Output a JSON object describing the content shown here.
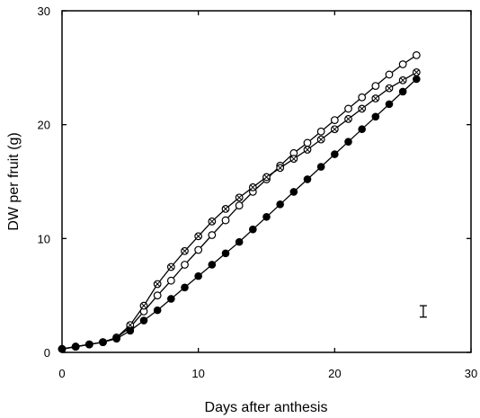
{
  "chart_data": {
    "type": "line",
    "xlabel": "Days after anthesis",
    "ylabel": "DW per fruit (g)",
    "xlim": [
      0,
      30
    ],
    "ylim": [
      0,
      30
    ],
    "xticks": [
      "0",
      "10",
      "20",
      "30"
    ],
    "yticks": [
      "0",
      "10",
      "20",
      "30"
    ],
    "grid": false,
    "legend": "none",
    "series": [
      {
        "marker": "open-circle",
        "x": [
          0,
          1,
          2,
          3,
          4,
          5,
          6,
          7,
          8,
          9,
          10,
          11,
          12,
          13,
          14,
          15,
          16,
          17,
          18,
          19,
          20,
          21,
          22,
          23,
          24,
          25,
          26
        ],
        "y": [
          0.3,
          0.5,
          0.7,
          0.9,
          1.3,
          2.2,
          3.6,
          5.0,
          6.3,
          7.7,
          9.0,
          10.3,
          11.6,
          12.9,
          14.1,
          15.2,
          16.4,
          17.5,
          18.4,
          19.4,
          20.4,
          21.4,
          22.4,
          23.4,
          24.4,
          25.3,
          26.1
        ]
      },
      {
        "marker": "crossed-circle",
        "x": [
          0,
          1,
          2,
          3,
          4,
          5,
          6,
          7,
          8,
          9,
          10,
          11,
          12,
          13,
          14,
          15,
          16,
          17,
          18,
          19,
          20,
          21,
          22,
          23,
          24,
          25,
          26
        ],
        "y": [
          0.3,
          0.5,
          0.7,
          0.9,
          1.3,
          2.4,
          4.1,
          6.0,
          7.5,
          8.9,
          10.2,
          11.5,
          12.6,
          13.6,
          14.5,
          15.4,
          16.2,
          17.0,
          17.8,
          18.7,
          19.6,
          20.5,
          21.4,
          22.3,
          23.2,
          23.9,
          24.6
        ]
      },
      {
        "marker": "filled-circle",
        "x": [
          0,
          1,
          2,
          3,
          4,
          5,
          6,
          7,
          8,
          9,
          10,
          11,
          12,
          13,
          14,
          15,
          16,
          17,
          18,
          19,
          20,
          21,
          22,
          23,
          24,
          25,
          26
        ],
        "y": [
          0.3,
          0.5,
          0.7,
          0.9,
          1.2,
          1.9,
          2.8,
          3.7,
          4.7,
          5.7,
          6.7,
          7.7,
          8.7,
          9.7,
          10.8,
          11.9,
          13.0,
          14.1,
          15.2,
          16.3,
          17.4,
          18.5,
          19.6,
          20.7,
          21.8,
          22.9,
          24.0
        ]
      }
    ],
    "annotations": [
      {
        "type": "error-bar",
        "x": 26.5,
        "y_low": 3.1,
        "y_high": 4.1
      }
    ]
  }
}
